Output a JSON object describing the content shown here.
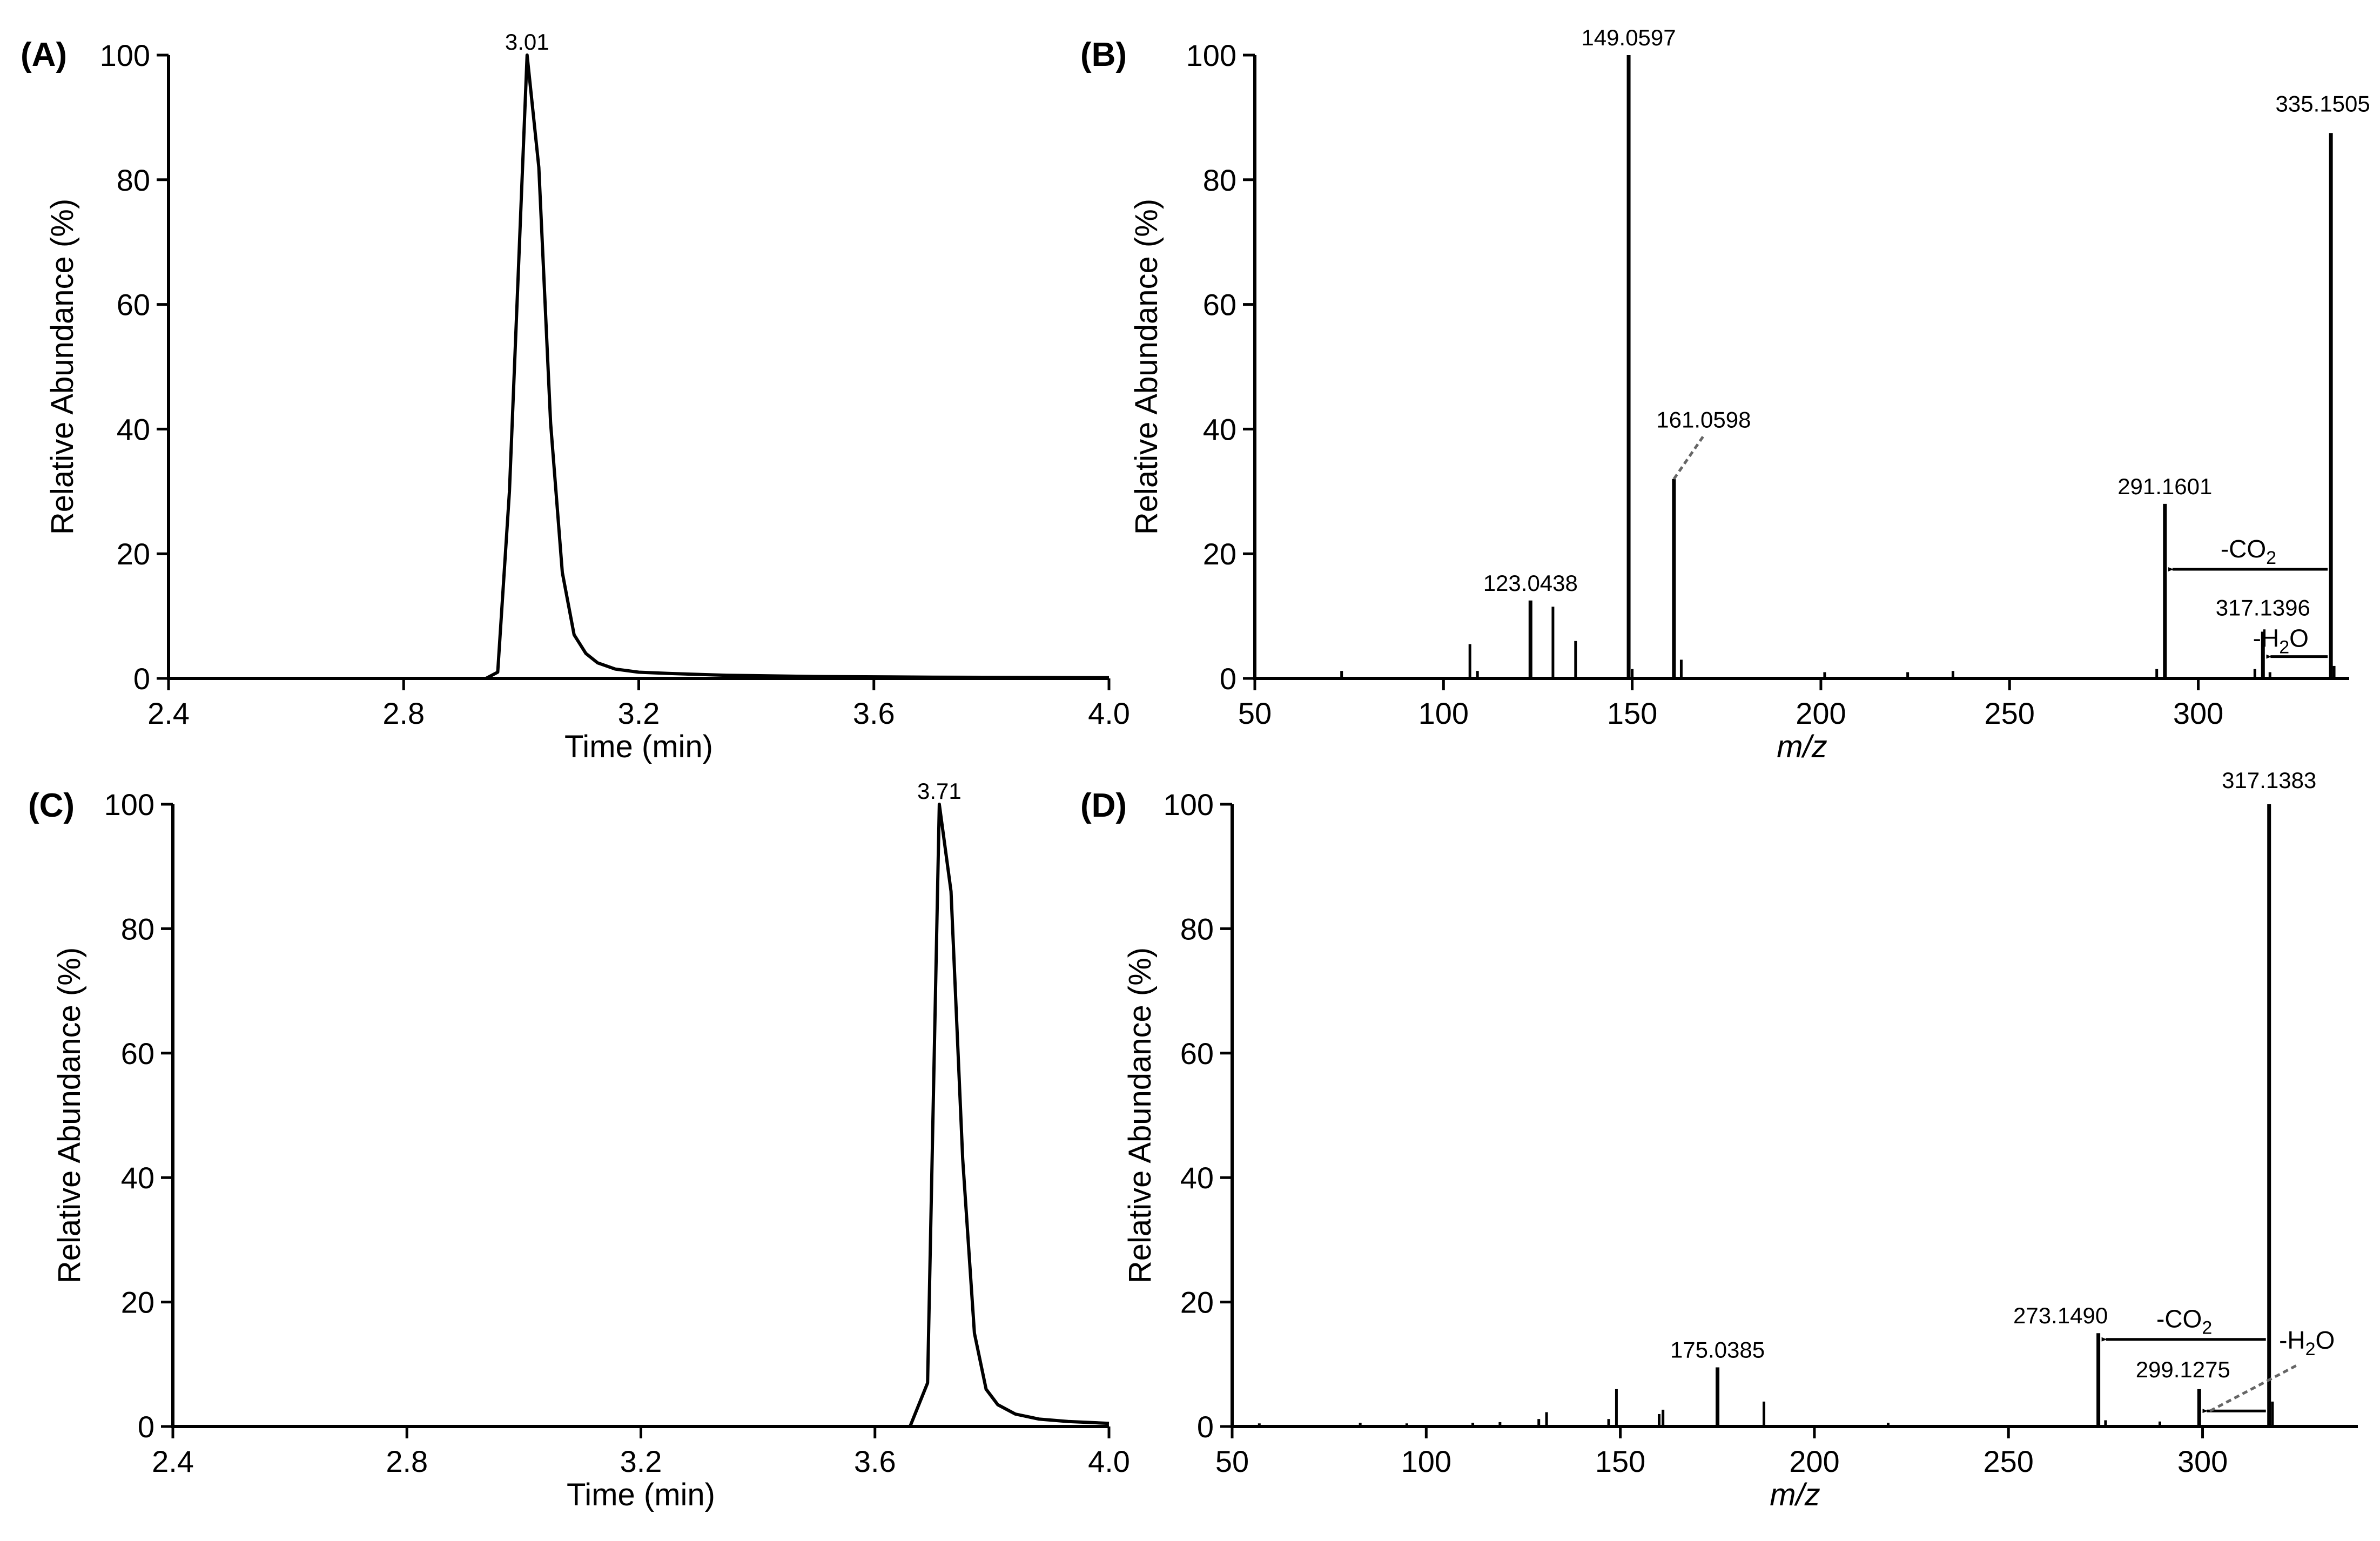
{
  "colors": {
    "ink": "#000000",
    "leader": "#666666",
    "background": "#ffffff"
  },
  "chart_data": [
    {
      "panel": "(A)",
      "type": "line",
      "xlabel": "Time (min)",
      "ylabel": "Relative Abundance (%)",
      "xlim": [
        2.4,
        4.0
      ],
      "ylim": [
        0,
        100
      ],
      "xticks": [
        "2.4",
        "2.8",
        "3.2",
        "3.6",
        "4.0"
      ],
      "yticks": [
        "0",
        "20",
        "40",
        "60",
        "80",
        "100"
      ],
      "peak_label": "3.01",
      "peak_at": [
        3.01,
        100
      ],
      "x": [
        2.4,
        2.94,
        2.96,
        2.98,
        3.01,
        3.03,
        3.05,
        3.07,
        3.09,
        3.11,
        3.13,
        3.16,
        3.2,
        3.25,
        3.35,
        3.5,
        3.7,
        4.0
      ],
      "y": [
        0,
        0,
        1,
        30,
        100,
        82,
        41,
        17,
        7,
        4,
        2.5,
        1.5,
        1,
        0.8,
        0.5,
        0.3,
        0.2,
        0.1
      ]
    },
    {
      "panel": "(B)",
      "type": "bar",
      "xlabel": "m/z",
      "ylabel": "Relative Abundance (%)",
      "xlim": [
        50,
        340
      ],
      "ylim": [
        0,
        100
      ],
      "xticks": [
        "50",
        "100",
        "150",
        "200",
        "250",
        "300"
      ],
      "yticks": [
        "0",
        "20",
        "40",
        "60",
        "80",
        "100"
      ],
      "peaks": [
        {
          "x": 73,
          "y": 1.2
        },
        {
          "x": 107,
          "y": 5.5
        },
        {
          "x": 109,
          "y": 1.2
        },
        {
          "x": 123.0438,
          "y": 12.5,
          "label": "123.0438"
        },
        {
          "x": 129,
          "y": 11.5
        },
        {
          "x": 135,
          "y": 6
        },
        {
          "x": 149.0597,
          "y": 100,
          "label": "149.0597"
        },
        {
          "x": 150,
          "y": 1.5
        },
        {
          "x": 161.0598,
          "y": 32,
          "label": "161.0598",
          "leader": true
        },
        {
          "x": 163,
          "y": 3
        },
        {
          "x": 201,
          "y": 1
        },
        {
          "x": 223,
          "y": 1
        },
        {
          "x": 235,
          "y": 1.2
        },
        {
          "x": 289,
          "y": 1.5
        },
        {
          "x": 291.1601,
          "y": 28,
          "label": "291.1601"
        },
        {
          "x": 315,
          "y": 1.5
        },
        {
          "x": 317.1396,
          "y": 7.5,
          "label": "317.1396"
        },
        {
          "x": 319,
          "y": 1
        },
        {
          "x": 335.1505,
          "y": 87.5,
          "label": "335.1505"
        },
        {
          "x": 336,
          "y": 2
        }
      ],
      "annotations": [
        {
          "label": "-CO",
          "sub": "2",
          "from": 335.1505,
          "to": 291.1601,
          "y": 17.5
        },
        {
          "label": "-H",
          "sub": "2",
          "tail": "O",
          "from": 335.1505,
          "to": 317.1396,
          "y": 3.5
        }
      ]
    },
    {
      "panel": "(C)",
      "type": "line",
      "xlabel": "Time (min)",
      "ylabel": "Relative Abundance (%)",
      "xlim": [
        2.4,
        4.0
      ],
      "ylim": [
        0,
        100
      ],
      "xticks": [
        "2.4",
        "2.8",
        "3.2",
        "3.6",
        "4.0"
      ],
      "yticks": [
        "0",
        "20",
        "40",
        "60",
        "80",
        "100"
      ],
      "peak_label": "3.71",
      "peak_at": [
        3.71,
        100
      ],
      "x": [
        2.4,
        3.66,
        3.69,
        3.71,
        3.73,
        3.75,
        3.77,
        3.79,
        3.81,
        3.84,
        3.88,
        3.93,
        4.0
      ],
      "y": [
        0,
        0,
        7,
        100,
        86,
        43,
        15,
        6,
        3.5,
        2,
        1.2,
        0.8,
        0.5
      ]
    },
    {
      "panel": "(D)",
      "type": "bar",
      "xlabel": "m/z",
      "ylabel": "Relative Abundance (%)",
      "xlim": [
        50,
        340
      ],
      "ylim": [
        0,
        100
      ],
      "xticks": [
        "50",
        "100",
        "150",
        "200",
        "250",
        "300"
      ],
      "yticks": [
        "0",
        "20",
        "40",
        "60",
        "80",
        "100"
      ],
      "peaks": [
        {
          "x": 57,
          "y": 0.5
        },
        {
          "x": 83,
          "y": 0.6
        },
        {
          "x": 95,
          "y": 0.5
        },
        {
          "x": 112,
          "y": 0.6
        },
        {
          "x": 119,
          "y": 0.7
        },
        {
          "x": 129,
          "y": 1.2
        },
        {
          "x": 131,
          "y": 2.3
        },
        {
          "x": 147,
          "y": 1.2
        },
        {
          "x": 149,
          "y": 6
        },
        {
          "x": 160,
          "y": 2
        },
        {
          "x": 161,
          "y": 2.7
        },
        {
          "x": 175.0385,
          "y": 9.5,
          "label": "175.0385"
        },
        {
          "x": 187,
          "y": 4
        },
        {
          "x": 219,
          "y": 0.6
        },
        {
          "x": 273.149,
          "y": 15,
          "label": "273.1490"
        },
        {
          "x": 275,
          "y": 1
        },
        {
          "x": 289,
          "y": 0.8
        },
        {
          "x": 299.1275,
          "y": 6,
          "label": "299.1275"
        },
        {
          "x": 317.1383,
          "y": 100,
          "label": "317.1383"
        },
        {
          "x": 318,
          "y": 4
        }
      ],
      "annotations": [
        {
          "label": "-CO",
          "sub": "2",
          "from": 317.1383,
          "to": 273.149,
          "y": 14
        },
        {
          "label": "-H",
          "sub": "2",
          "tail": "O",
          "from": 317.1383,
          "to": 299.1275,
          "y": 2.5,
          "leader": true
        }
      ]
    }
  ]
}
